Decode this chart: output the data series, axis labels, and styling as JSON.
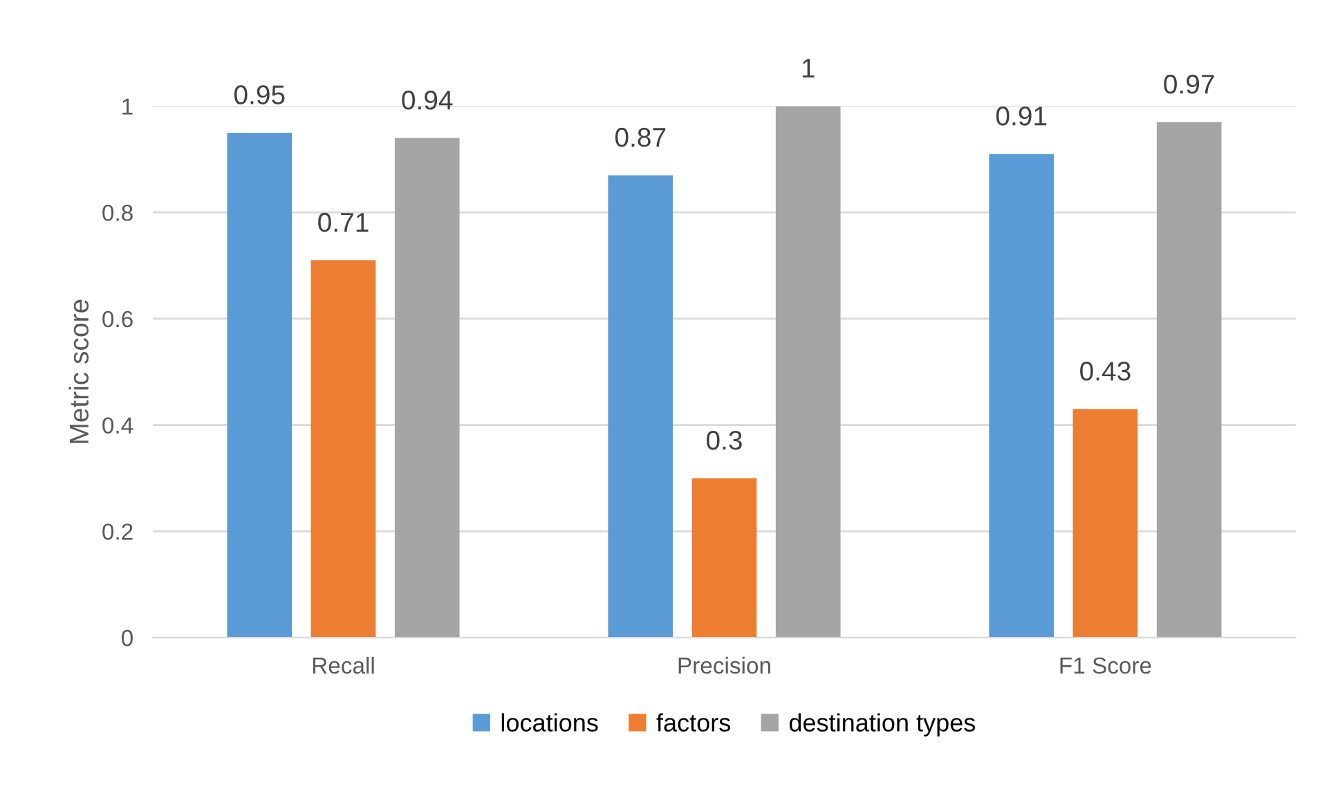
{
  "chart_data": {
    "type": "bar",
    "ylabel": "Metric score",
    "categories": [
      "Recall",
      "Precision",
      "F1 Score"
    ],
    "series": [
      {
        "name": "locations",
        "color": "#5b9bd5",
        "values": [
          0.95,
          0.87,
          0.91
        ]
      },
      {
        "name": "factors",
        "color": "#ed7d31",
        "values": [
          0.71,
          0.3,
          0.43
        ]
      },
      {
        "name": "destination types",
        "color": "#a5a5a5",
        "values": [
          0.94,
          1,
          0.97
        ]
      }
    ],
    "ylim": [
      0,
      1
    ],
    "yticks": [
      0,
      0.2,
      0.4,
      0.6,
      0.8,
      1
    ],
    "grid": "y",
    "legend": "bottom",
    "data_labels": true
  }
}
